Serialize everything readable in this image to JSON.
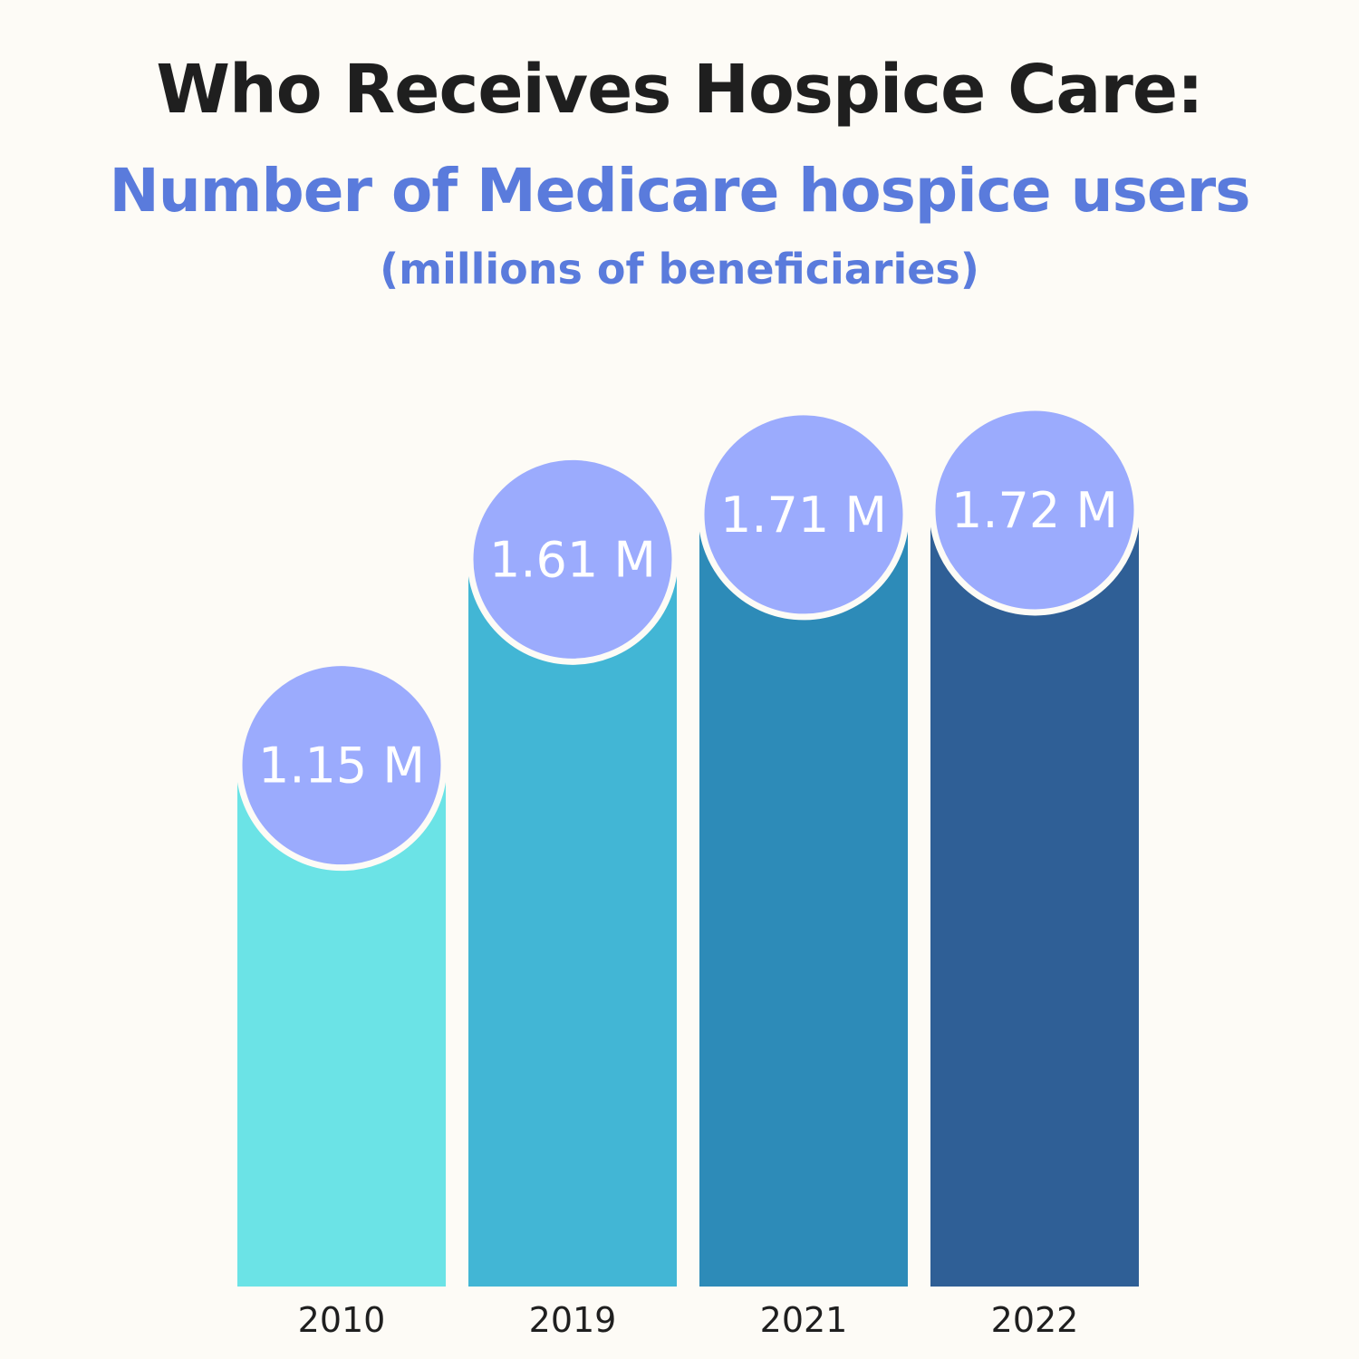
{
  "header": {
    "title": "Who Receives Hospice Care:",
    "subtitle": "Number of Medicare hospice users",
    "subtitle2": "(millions of beneficiaries)"
  },
  "chart_data": {
    "type": "bar",
    "title": "Who Receives Hospice Care:",
    "subtitle": "Number of Medicare hospice users",
    "ylabel": "(millions of beneficiaries)",
    "xlabel": "",
    "categories": [
      "2010",
      "2019",
      "2021",
      "2022"
    ],
    "values": [
      1.15,
      1.61,
      1.71,
      1.72
    ],
    "value_labels": [
      "1.15 M",
      "1.61 M",
      "1.71 M",
      "1.72 M"
    ],
    "ylim": [
      0,
      2.0
    ],
    "grid": false,
    "colors": [
      "#6be3e6",
      "#42b6d5",
      "#2d8bb8",
      "#2f5f96"
    ],
    "bubble_color": "#9babfd"
  }
}
